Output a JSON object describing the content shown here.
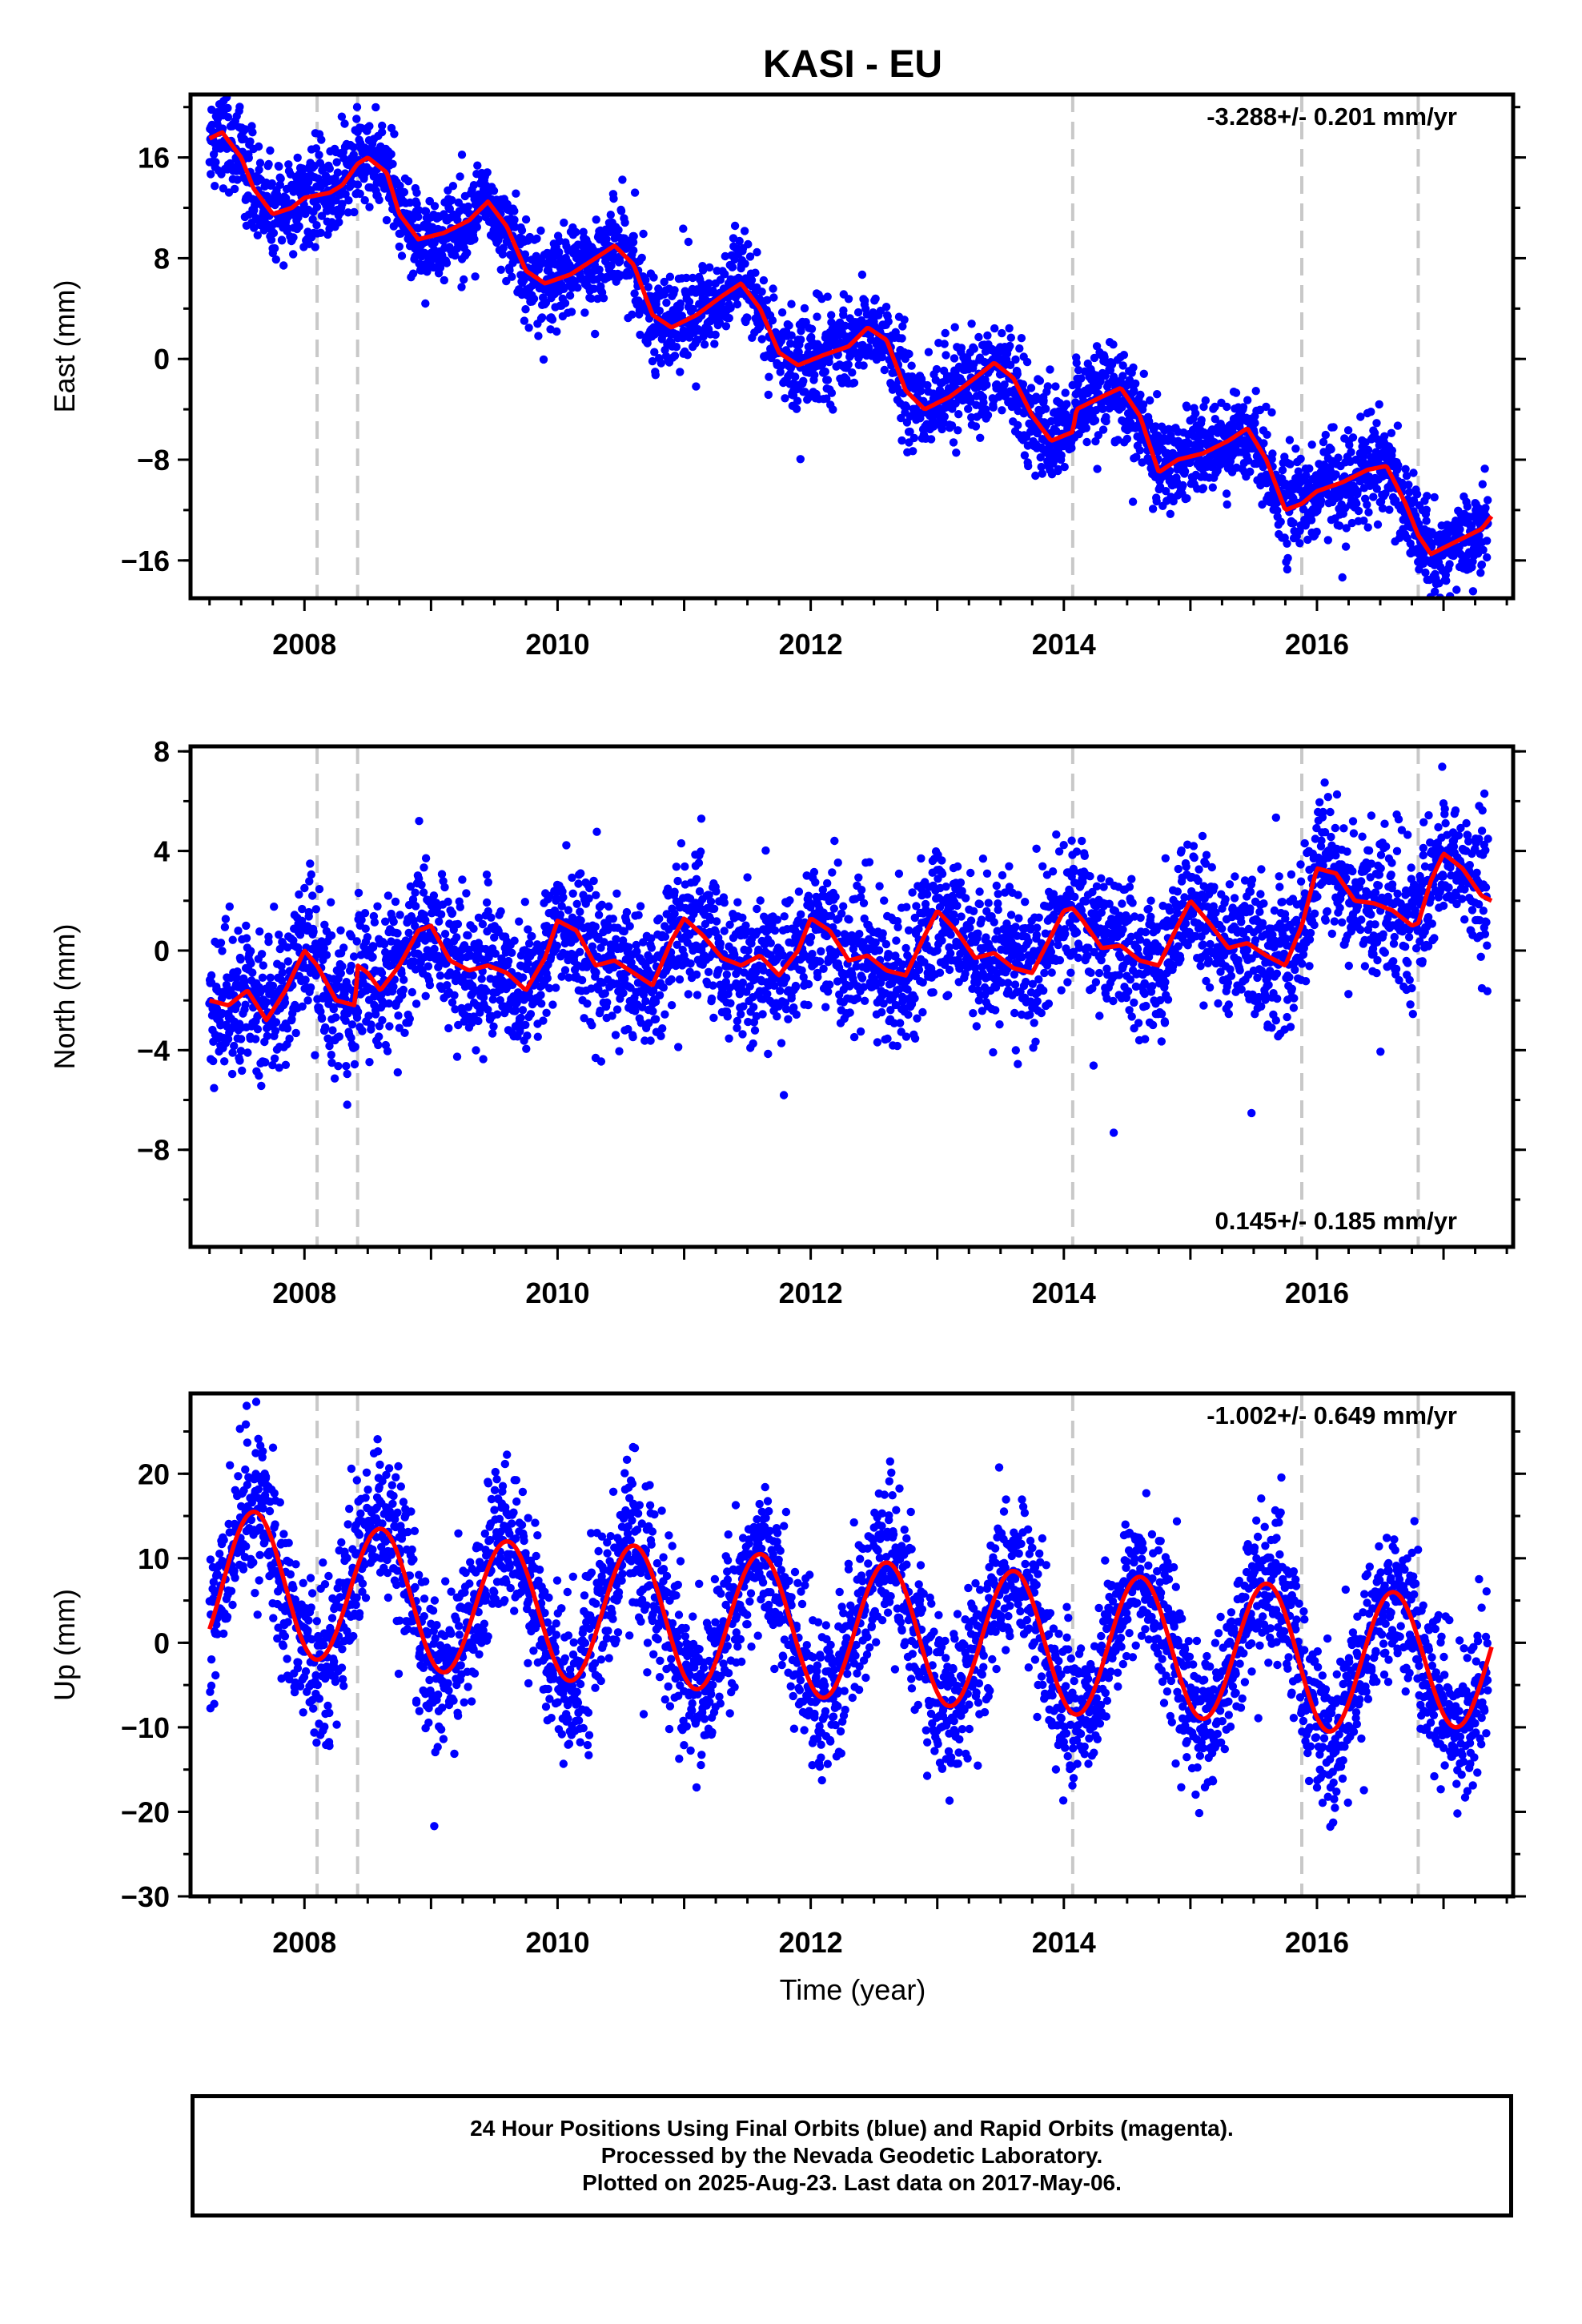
{
  "title": "KASI - EU",
  "xlabel": "Time (year)",
  "footer": {
    "line1": "24 Hour Positions Using Final Orbits (blue) and Rapid Orbits (magenta).",
    "line2": "Processed by the Nevada Geodetic Laboratory.",
    "line3": "Plotted on 2025-Aug-23. Last data on 2017-May-06."
  },
  "colors": {
    "points": "#0000ff",
    "model": "#ff0000",
    "breaks": "#c8c8c8",
    "axis": "#000000"
  },
  "chart_data": [
    {
      "type": "scatter",
      "component": "east",
      "ylabel": "East (mm)",
      "rate_label": "-3.288+/- 0.201 mm/yr",
      "rate_position": "top-right",
      "xlim": [
        2007.1,
        2017.55
      ],
      "ylim": [
        -19,
        21
      ],
      "xticks": [
        2008,
        2010,
        2012,
        2014,
        2016
      ],
      "yticks": [
        16,
        8,
        0,
        -8,
        -16
      ],
      "ytick_labels": [
        "16",
        "8",
        "0",
        "−8",
        "−16"
      ],
      "grid": false,
      "breaks": [
        2008.1,
        2008.42,
        2014.07,
        2015.88,
        2016.8
      ],
      "model": {
        "name": "model fit",
        "x": [
          2007.25,
          2007.35,
          2007.5,
          2007.6,
          2007.75,
          2007.9,
          2008.0,
          2008.2,
          2008.3,
          2008.42,
          2008.5,
          2008.65,
          2008.75,
          2008.9,
          2009.1,
          2009.3,
          2009.45,
          2009.6,
          2009.75,
          2009.9,
          2010.1,
          2010.3,
          2010.45,
          2010.6,
          2010.75,
          2010.9,
          2011.1,
          2011.3,
          2011.45,
          2011.6,
          2011.75,
          2011.9,
          2012.1,
          2012.3,
          2012.45,
          2012.6,
          2012.75,
          2012.9,
          2013.1,
          2013.3,
          2013.45,
          2013.6,
          2013.75,
          2013.9,
          2014.07,
          2014.1,
          2014.3,
          2014.45,
          2014.6,
          2014.75,
          2014.9,
          2015.1,
          2015.3,
          2015.45,
          2015.6,
          2015.75,
          2015.88,
          2016.0,
          2016.2,
          2016.4,
          2016.55,
          2016.7,
          2016.8,
          2016.9,
          2017.1,
          2017.3,
          2017.38
        ],
        "y": [
          17.5,
          18.0,
          16.0,
          13.5,
          11.5,
          12.0,
          12.8,
          13.2,
          13.8,
          15.5,
          16.0,
          14.8,
          11.5,
          9.5,
          10.0,
          11.0,
          12.5,
          10.5,
          7.0,
          6.0,
          6.7,
          8.0,
          9.0,
          7.5,
          3.5,
          2.5,
          3.5,
          5.0,
          6.0,
          4.0,
          0.5,
          -0.5,
          0.3,
          1.0,
          2.5,
          1.5,
          -2.5,
          -4.0,
          -3.0,
          -1.5,
          -0.3,
          -1.5,
          -4.5,
          -6.5,
          -5.8,
          -4.0,
          -3.0,
          -2.3,
          -4.5,
          -9.0,
          -8.0,
          -7.5,
          -6.5,
          -5.5,
          -8.0,
          -12.0,
          -11.5,
          -10.5,
          -9.8,
          -8.8,
          -8.5,
          -11.5,
          -14.0,
          -15.5,
          -14.5,
          -13.5,
          -12.5
        ]
      },
      "observations": {
        "name": "24 hour positions",
        "count": 3600,
        "x_range": [
          2007.25,
          2017.35
        ],
        "scatter_mm": 1.8
      }
    },
    {
      "type": "scatter",
      "component": "north",
      "ylabel": "North (mm)",
      "rate_label": "0.145+/- 0.185 mm/yr",
      "rate_position": "bottom-right",
      "xlim": [
        2007.1,
        2017.55
      ],
      "ylim": [
        -11.9,
        8.2
      ],
      "xticks": [
        2008,
        2010,
        2012,
        2014,
        2016
      ],
      "yticks": [
        8,
        4,
        0,
        -4,
        -8
      ],
      "ytick_labels": [
        "8",
        "4",
        "0",
        "−4",
        "−8"
      ],
      "grid": false,
      "breaks": [
        2008.1,
        2008.42,
        2014.07,
        2015.88,
        2016.8
      ],
      "model": {
        "name": "model fit",
        "x": [
          2007.25,
          2007.4,
          2007.55,
          2007.7,
          2007.85,
          2008.0,
          2008.1,
          2008.25,
          2008.4,
          2008.42,
          2008.5,
          2008.6,
          2008.75,
          2008.9,
          2009.0,
          2009.15,
          2009.3,
          2009.45,
          2009.6,
          2009.75,
          2009.9,
          2010.0,
          2010.15,
          2010.3,
          2010.45,
          2010.6,
          2010.75,
          2010.9,
          2011.0,
          2011.15,
          2011.3,
          2011.45,
          2011.6,
          2011.75,
          2011.9,
          2012.0,
          2012.15,
          2012.3,
          2012.45,
          2012.6,
          2012.75,
          2012.9,
          2013.0,
          2013.15,
          2013.3,
          2013.45,
          2013.6,
          2013.75,
          2013.9,
          2014.0,
          2014.07,
          2014.15,
          2014.3,
          2014.45,
          2014.6,
          2014.75,
          2014.9,
          2015.0,
          2015.15,
          2015.3,
          2015.45,
          2015.6,
          2015.75,
          2015.88,
          2016.0,
          2016.15,
          2016.3,
          2016.45,
          2016.6,
          2016.75,
          2016.8,
          2016.9,
          2017.0,
          2017.15,
          2017.3,
          2017.38
        ],
        "y": [
          -2.0,
          -2.2,
          -1.6,
          -2.8,
          -1.6,
          0.0,
          -0.6,
          -2.0,
          -2.2,
          -0.6,
          -0.9,
          -1.6,
          -0.6,
          0.8,
          1.0,
          -0.4,
          -0.8,
          -0.6,
          -0.9,
          -1.6,
          -0.3,
          1.2,
          0.8,
          -0.6,
          -0.4,
          -0.9,
          -1.4,
          0.4,
          1.3,
          0.6,
          -0.3,
          -0.6,
          -0.2,
          -1.0,
          0.0,
          1.3,
          0.8,
          -0.4,
          -0.2,
          -0.8,
          -1.0,
          0.6,
          1.6,
          0.8,
          -0.3,
          -0.1,
          -0.7,
          -0.9,
          0.6,
          1.6,
          1.7,
          1.2,
          0.1,
          0.2,
          -0.4,
          -0.6,
          1.0,
          2.0,
          1.1,
          0.1,
          0.3,
          -0.2,
          -0.6,
          1.0,
          3.3,
          3.1,
          2.0,
          1.9,
          1.6,
          1.0,
          1.1,
          2.8,
          3.9,
          3.3,
          2.2,
          2.0
        ]
      },
      "observations": {
        "name": "24 hour positions",
        "count": 3600,
        "x_range": [
          2007.25,
          2017.35
        ],
        "scatter_mm": 1.4
      }
    },
    {
      "type": "scatter",
      "component": "up",
      "ylabel": "Up (mm)",
      "rate_label": "-1.002+/- 0.649 mm/yr",
      "rate_position": "top-right",
      "xlim": [
        2007.1,
        2017.55
      ],
      "ylim": [
        -30,
        29.5
      ],
      "xticks": [
        2008,
        2010,
        2012,
        2014,
        2016
      ],
      "yticks": [
        20,
        10,
        0,
        -10,
        -20,
        -30
      ],
      "ytick_labels": [
        "20",
        "10",
        "0",
        "−10",
        "−20",
        "−30"
      ],
      "grid": false,
      "breaks": [
        2008.1,
        2008.42,
        2014.07,
        2015.88,
        2016.8
      ],
      "model": {
        "name": "model fit",
        "mean_mm": 6.5,
        "trend_mm_per_yr": -1.0,
        "annual_amplitude_mm": 9.0,
        "peak_x": [
          2007.6,
          2008.6,
          2009.6,
          2010.6,
          2011.6,
          2012.6,
          2013.6,
          2014.6,
          2015.6,
          2016.6
        ],
        "peak_y": [
          15.5,
          13.5,
          12.0,
          11.5,
          10.5,
          9.5,
          8.5,
          7.8,
          7.0,
          6.0
        ],
        "trough_x": [
          2008.1,
          2009.1,
          2010.1,
          2011.1,
          2012.1,
          2013.1,
          2014.1,
          2015.1,
          2016.1,
          2017.1
        ],
        "trough_y": [
          -2.0,
          -3.5,
          -4.5,
          -5.5,
          -6.5,
          -7.5,
          -8.5,
          -9.0,
          -10.5,
          -10.0
        ]
      },
      "observations": {
        "name": "24 hour positions",
        "count": 3600,
        "x_range": [
          2007.25,
          2017.35
        ],
        "scatter_mm": 4.5
      }
    }
  ]
}
